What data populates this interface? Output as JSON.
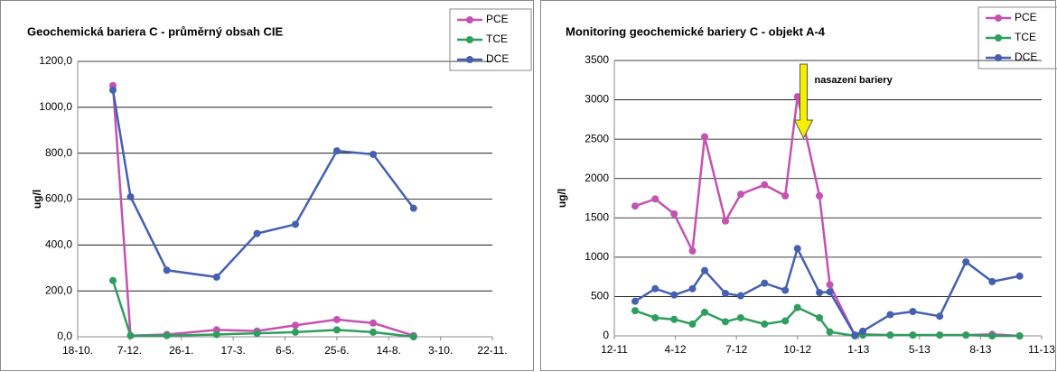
{
  "chart_data": [
    {
      "type": "line",
      "title": "Geochemická bariera C - průměrný obsah CIE",
      "ylabel": "ug/l",
      "x": [
        34,
        51,
        86,
        134,
        173,
        210,
        250,
        285,
        324
      ],
      "xlim": [
        0,
        400
      ],
      "xticks": [
        {
          "value": 0,
          "label": "18-10."
        },
        {
          "value": 50,
          "label": "7-12."
        },
        {
          "value": 100,
          "label": "26-1."
        },
        {
          "value": 150,
          "label": "17-3."
        },
        {
          "value": 200,
          "label": "6-5."
        },
        {
          "value": 250,
          "label": "25-6."
        },
        {
          "value": 300,
          "label": "14-8."
        },
        {
          "value": 350,
          "label": "3-10."
        },
        {
          "value": 400,
          "label": "22-11."
        }
      ],
      "ylim": [
        0,
        1200
      ],
      "yticks": [
        {
          "value": 0,
          "label": "0,0"
        },
        {
          "value": 200,
          "label": "200,0"
        },
        {
          "value": 400,
          "label": "400,0"
        },
        {
          "value": 600,
          "label": "600,0"
        },
        {
          "value": 800,
          "label": "800,0"
        },
        {
          "value": 1000,
          "label": "1000,0"
        },
        {
          "value": 1200,
          "label": "1200,0"
        }
      ],
      "grid": true,
      "legend": "top-right",
      "series": [
        {
          "name": "PCE",
          "color": "#c452b0",
          "values": [
            1095,
            5,
            10,
            30,
            25,
            50,
            75,
            60,
            5
          ]
        },
        {
          "name": "TCE",
          "color": "#2e9e5e",
          "values": [
            245,
            5,
            5,
            10,
            15,
            20,
            30,
            20,
            0
          ]
        },
        {
          "name": "DCE",
          "color": "#4560b0",
          "values": [
            1075,
            610,
            290,
            260,
            450,
            490,
            810,
            795,
            560
          ]
        }
      ]
    },
    {
      "type": "line",
      "title": "Monitoring geochemické bariery C - objekt A-4",
      "ylabel": "ug/l",
      "x": [
        0.34,
        0.67,
        0.98,
        1.28,
        1.48,
        1.82,
        2.07,
        2.46,
        2.8,
        3.0,
        3.36,
        3.53,
        3.94,
        4.07,
        4.52,
        4.89,
        5.33,
        5.76,
        6.19,
        6.64
      ],
      "xlim": [
        0,
        7
      ],
      "xticks": [
        {
          "value": 0,
          "label": "12-11"
        },
        {
          "value": 1,
          "label": "4-12"
        },
        {
          "value": 2,
          "label": "7-12"
        },
        {
          "value": 3,
          "label": "10-12"
        },
        {
          "value": 4,
          "label": "1-13"
        },
        {
          "value": 5,
          "label": "5-13"
        },
        {
          "value": 6,
          "label": "8-13"
        },
        {
          "value": 7,
          "label": "11-13"
        }
      ],
      "ylim": [
        0,
        3500
      ],
      "yticks": [
        0,
        500,
        1000,
        1500,
        2000,
        2500,
        3000,
        3500
      ],
      "grid": true,
      "legend": "top-right",
      "annotation": {
        "text": "nasazení bariery",
        "x": 3.1
      },
      "series": [
        {
          "name": "PCE",
          "color": "#c452b0",
          "values": [
            1650,
            1740,
            1550,
            1080,
            2530,
            1460,
            1800,
            1920,
            1780,
            3040,
            1780,
            650,
            10,
            20,
            10,
            10,
            10,
            10,
            20,
            0
          ]
        },
        {
          "name": "TCE",
          "color": "#2e9e5e",
          "values": [
            320,
            230,
            210,
            150,
            300,
            180,
            230,
            150,
            190,
            360,
            230,
            50,
            0,
            10,
            10,
            10,
            10,
            10,
            0,
            0
          ]
        },
        {
          "name": "DCE",
          "color": "#4560b0",
          "values": [
            440,
            600,
            520,
            600,
            830,
            540,
            510,
            670,
            580,
            1110,
            550,
            560,
            10,
            60,
            270,
            310,
            250,
            940,
            690,
            760
          ]
        }
      ]
    }
  ]
}
